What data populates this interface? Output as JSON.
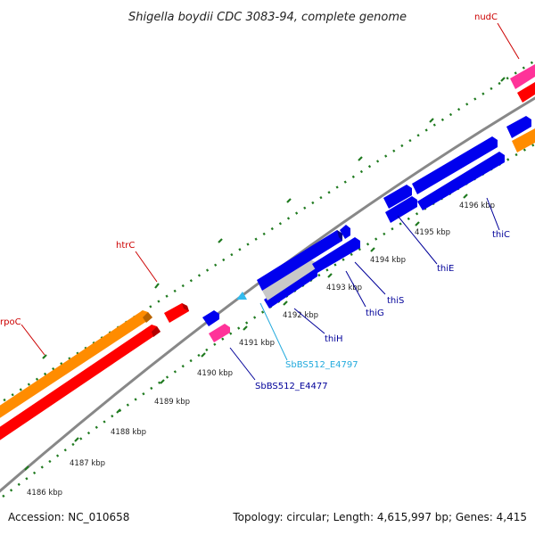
{
  "title": "Shigella boydii CDC 3083-94, complete genome",
  "footer": {
    "accession": "Accession: NC_010658",
    "summary": "Topology: circular; Length: 4,615,997 bp; Genes: 4,415"
  },
  "colors": {
    "backbone": "#888888",
    "tick": "#1f7a1f",
    "gene_blue": "#0000ee",
    "gene_red": "#ff0000",
    "gene_orange": "#ff8c00",
    "gene_pink": "#ff3399",
    "gene_cyan": "#33bbee",
    "gene_gray": "#c8c8c8",
    "label_red": "#cc0000",
    "label_blue": "#000099",
    "label_cyan": "#22aadd"
  },
  "scale_labels": [
    "4186 kbp",
    "4187 kbp",
    "4188 kbp",
    "4189 kbp",
    "4190 kbp",
    "4191 kbp",
    "4192 kbp",
    "4193 kbp",
    "4194 kbp",
    "4195 kbp",
    "4196 kbp"
  ],
  "gene_labels": [
    {
      "name": "nudC",
      "color": "label_red"
    },
    {
      "name": "htrC",
      "color": "label_red"
    },
    {
      "name": "rpoC",
      "color": "label_red"
    },
    {
      "name": "thiC",
      "color": "label_blue"
    },
    {
      "name": "thiE",
      "color": "label_blue"
    },
    {
      "name": "thiS",
      "color": "label_blue"
    },
    {
      "name": "thiG",
      "color": "label_blue"
    },
    {
      "name": "thiH",
      "color": "label_blue"
    },
    {
      "name": "SbBS512_E4797",
      "color": "label_cyan"
    },
    {
      "name": "SbBS512_E4477",
      "color": "label_blue"
    }
  ]
}
